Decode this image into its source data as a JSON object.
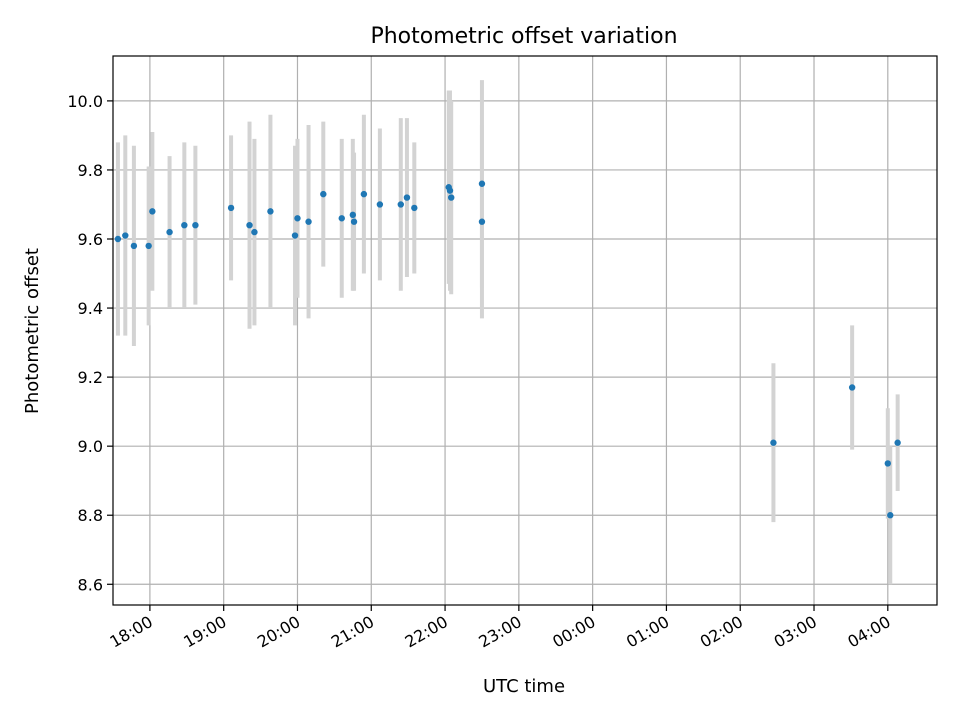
{
  "chart_data": {
    "type": "scatter",
    "title": "Photometric offset variation",
    "xlabel": "UTC time",
    "ylabel": "Photometric offset",
    "xlim": [
      "17:30",
      "04:40"
    ],
    "ylim": [
      8.54,
      10.13
    ],
    "x_ticks": [
      "18:00",
      "19:00",
      "20:00",
      "21:00",
      "22:00",
      "23:00",
      "00:00",
      "01:00",
      "02:00",
      "03:00",
      "04:00"
    ],
    "y_ticks": [
      "8.6",
      "8.8",
      "9.0",
      "9.2",
      "9.4",
      "9.6",
      "9.8",
      "10.0"
    ],
    "grid": true,
    "point_color": "#1f77b4",
    "errorbar_color": "#d3d3d3",
    "points": [
      {
        "x": "17:34",
        "y": 9.6,
        "err": 0.28
      },
      {
        "x": "17:40",
        "y": 9.61,
        "err": 0.29
      },
      {
        "x": "17:47",
        "y": 9.58,
        "err": 0.29
      },
      {
        "x": "17:59",
        "y": 9.58,
        "err": 0.23
      },
      {
        "x": "18:02",
        "y": 9.68,
        "err": 0.23
      },
      {
        "x": "18:16",
        "y": 9.62,
        "err": 0.22
      },
      {
        "x": "18:28",
        "y": 9.64,
        "err": 0.24
      },
      {
        "x": "18:37",
        "y": 9.64,
        "err": 0.23
      },
      {
        "x": "19:06",
        "y": 9.69,
        "err": 0.21
      },
      {
        "x": "19:21",
        "y": 9.64,
        "err": 0.3
      },
      {
        "x": "19:25",
        "y": 9.62,
        "err": 0.27
      },
      {
        "x": "19:38",
        "y": 9.68,
        "err": 0.28
      },
      {
        "x": "19:58",
        "y": 9.61,
        "err": 0.26
      },
      {
        "x": "20:00",
        "y": 9.66,
        "err": 0.23
      },
      {
        "x": "20:09",
        "y": 9.65,
        "err": 0.28
      },
      {
        "x": "20:21",
        "y": 9.73,
        "err": 0.21
      },
      {
        "x": "20:36",
        "y": 9.66,
        "err": 0.23
      },
      {
        "x": "20:45",
        "y": 9.67,
        "err": 0.22
      },
      {
        "x": "20:46",
        "y": 9.65,
        "err": 0.2
      },
      {
        "x": "20:54",
        "y": 9.73,
        "err": 0.23
      },
      {
        "x": "21:07",
        "y": 9.7,
        "err": 0.22
      },
      {
        "x": "21:24",
        "y": 9.7,
        "err": 0.25
      },
      {
        "x": "21:29",
        "y": 9.72,
        "err": 0.23
      },
      {
        "x": "21:35",
        "y": 9.69,
        "err": 0.19
      },
      {
        "x": "22:03",
        "y": 9.75,
        "err": 0.28
      },
      {
        "x": "22:04",
        "y": 9.74,
        "err": 0.29
      },
      {
        "x": "22:05",
        "y": 9.72,
        "err": 0.28
      },
      {
        "x": "22:30",
        "y": 9.76,
        "err": 0.3
      },
      {
        "x": "22:30",
        "y": 9.65,
        "err": 0.28
      },
      {
        "x": "02:27",
        "y": 9.01,
        "err": 0.23
      },
      {
        "x": "03:31",
        "y": 9.17,
        "err": 0.18
      },
      {
        "x": "04:00",
        "y": 8.95,
        "err": 0.16
      },
      {
        "x": "04:02",
        "y": 8.8,
        "err": 0.2
      },
      {
        "x": "04:08",
        "y": 9.01,
        "err": 0.14
      }
    ]
  }
}
